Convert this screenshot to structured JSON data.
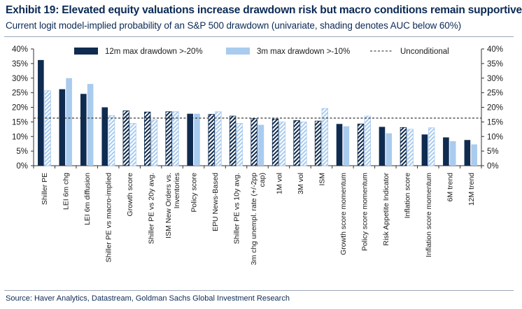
{
  "title": "Exhibit 19: Elevated equity valuations increase drawdown risk but macro conditions remain supportive",
  "subtitle": "Current logit model-implied probability of an S&P 500 drawdown (univariate, shading denotes AUC below 60%)",
  "source": "Source: Haver Analytics, Datastream, Goldman Sachs Global Investment Research",
  "colors": {
    "dark": "#0f2b50",
    "light": "#a9cbee",
    "unconditional": "#222222"
  },
  "chart_data": {
    "type": "bar",
    "title": "Exhibit 19: Elevated equity valuations increase drawdown risk but macro conditions remain supportive",
    "ylim": [
      0,
      40
    ],
    "yticks": [
      "0%",
      "5%",
      "10%",
      "15%",
      "20%",
      "25%",
      "30%",
      "35%",
      "40%"
    ],
    "categories": [
      [
        "Shiller PE"
      ],
      [
        "LEI 6m chg"
      ],
      [
        "LEI 6m diffusion"
      ],
      [
        "Shiller PE vs macro-implied"
      ],
      [
        "Growth score"
      ],
      [
        "Shiller PE vs 20y avg."
      ],
      [
        "ISM New Orders vs.",
        "Inventories"
      ],
      [
        "Policy score"
      ],
      [
        "EPU News-Based"
      ],
      [
        "Shiller PE vs 10y avg."
      ],
      [
        "3m chg unempl. rate (+/-2pp",
        "cap)"
      ],
      [
        "1M vol"
      ],
      [
        "3M vol"
      ],
      [
        "ISM"
      ],
      [
        "Growth score momentum"
      ],
      [
        "Policy score momentum"
      ],
      [
        "Risk Appetite Indicator"
      ],
      [
        "Inflation score"
      ],
      [
        "Inflation score momentum"
      ],
      [
        "6M trend"
      ],
      [
        "12M trend"
      ]
    ],
    "series": [
      {
        "name": "12m max drawdown >-20%",
        "values": [
          36.2,
          26.2,
          24.6,
          20.0,
          18.8,
          18.4,
          18.5,
          17.8,
          17.6,
          17.0,
          16.1,
          16.0,
          15.5,
          15.3,
          14.3,
          14.3,
          13.3,
          13.1,
          10.7,
          9.7,
          8.8
        ],
        "hatched": [
          false,
          false,
          false,
          false,
          true,
          true,
          true,
          false,
          true,
          true,
          true,
          true,
          true,
          true,
          false,
          true,
          false,
          true,
          false,
          false,
          false
        ]
      },
      {
        "name": "3m max drawdown >-10%",
        "values": [
          25.7,
          30.0,
          28.0,
          17.2,
          14.5,
          15.7,
          18.5,
          17.8,
          18.5,
          14.5,
          14.0,
          15.0,
          15.0,
          19.6,
          13.5,
          17.0,
          11.1,
          12.5,
          13.0,
          8.4,
          7.3
        ],
        "hatched": [
          true,
          false,
          false,
          true,
          true,
          true,
          true,
          false,
          true,
          true,
          false,
          true,
          true,
          true,
          false,
          true,
          false,
          true,
          true,
          false,
          false
        ]
      }
    ],
    "unconditional": {
      "name": "Unconditional",
      "value": 16.3
    }
  }
}
